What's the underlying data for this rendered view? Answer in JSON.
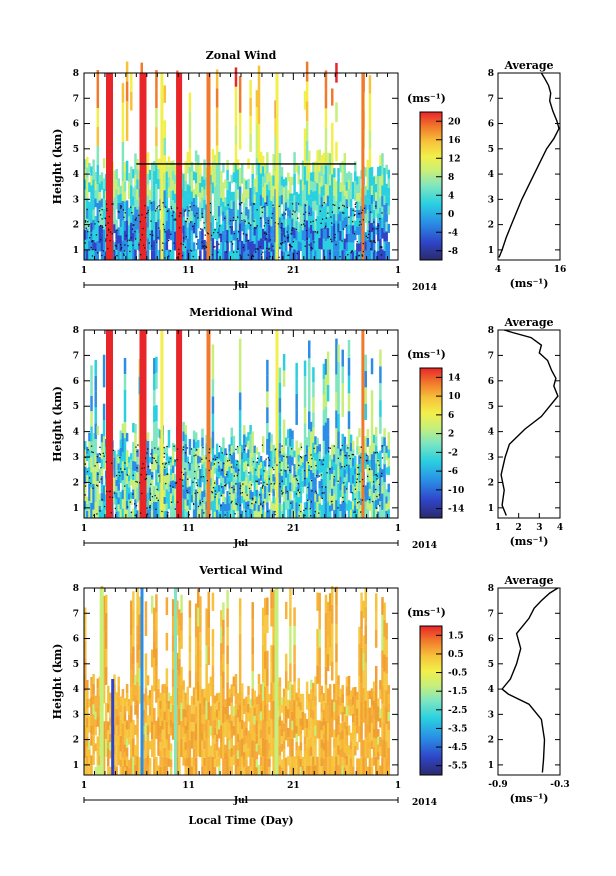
{
  "figure": {
    "xlabel": "Local Time (Day)",
    "month_label": "Jul",
    "year_label": "2014",
    "avg_title": "Average",
    "unit_label": "(ms⁻¹)"
  },
  "chart_data": [
    {
      "type": "heatmap",
      "title": "Zonal Wind",
      "ylabel": "Height (km)",
      "xlim": [
        1,
        31
      ],
      "ylim": [
        0.6,
        8
      ],
      "x_ticks": [
        "1",
        "11",
        "21",
        "1"
      ],
      "y_ticks": [
        "1",
        "2",
        "3",
        "4",
        "5",
        "6",
        "7",
        "8"
      ],
      "colorbar": {
        "label": "(ms⁻¹)",
        "ticks": [
          "20",
          "16",
          "12",
          "8",
          "4",
          "0",
          "-4",
          "-8"
        ],
        "min": -10,
        "max": 22
      },
      "data_gap_start_km": 4.4,
      "average_profile": {
        "title": "Average",
        "xlabel": "(ms⁻¹)",
        "xlim": [
          4,
          16
        ],
        "ylim": [
          0.6,
          8
        ],
        "x_ticks": [
          "4",
          "16"
        ],
        "y_ticks": [
          "1",
          "2",
          "3",
          "4",
          "5",
          "6",
          "7",
          "8"
        ],
        "x": [
          4.2,
          4.8,
          5.6,
          6.6,
          7.6,
          8.6,
          9.8,
          11.0,
          12.2,
          13.4,
          14.8,
          15.8,
          15.4,
          14.6,
          14.0,
          14.2,
          13.8,
          13.0,
          12.4
        ],
        "y": [
          0.7,
          1.0,
          1.5,
          2.0,
          2.5,
          3.0,
          3.5,
          4.0,
          4.5,
          5.0,
          5.4,
          5.8,
          6.1,
          6.5,
          6.9,
          7.2,
          7.5,
          7.8,
          8.0
        ]
      }
    },
    {
      "type": "heatmap",
      "title": "Meridional Wind",
      "ylabel": "Height (km)",
      "xlim": [
        1,
        31
      ],
      "ylim": [
        0.6,
        8
      ],
      "x_ticks": [
        "1",
        "11",
        "21",
        "1"
      ],
      "y_ticks": [
        "1",
        "2",
        "3",
        "4",
        "5",
        "6",
        "7",
        "8"
      ],
      "colorbar": {
        "label": "(ms⁻¹)",
        "ticks": [
          "14",
          "10",
          "6",
          "2",
          "-2",
          "-6",
          "-10",
          "-14"
        ],
        "min": -16,
        "max": 16
      },
      "average_profile": {
        "title": "Average",
        "xlabel": "(ms⁻¹)",
        "xlim": [
          1,
          4
        ],
        "ylim": [
          0.6,
          8
        ],
        "x_ticks": [
          "1",
          "2",
          "3",
          "4"
        ],
        "y_ticks": [
          "1",
          "2",
          "3",
          "4",
          "5",
          "6",
          "7",
          "8"
        ],
        "x": [
          1.4,
          1.2,
          1.3,
          1.15,
          1.35,
          1.55,
          2.3,
          3.1,
          3.5,
          3.9,
          3.7,
          3.8,
          3.6,
          3.4,
          3.0,
          3.1,
          2.6,
          1.7,
          1.3
        ],
        "y": [
          0.7,
          1.1,
          1.7,
          2.3,
          3.0,
          3.5,
          4.1,
          4.6,
          5.0,
          5.4,
          5.8,
          6.1,
          6.4,
          6.8,
          7.1,
          7.4,
          7.7,
          7.9,
          8.0
        ]
      }
    },
    {
      "type": "heatmap",
      "title": "Vertical Wind",
      "ylabel": "Height (km)",
      "xlim": [
        1,
        31
      ],
      "ylim": [
        0.6,
        8
      ],
      "x_ticks": [
        "1",
        "11",
        "21",
        "1"
      ],
      "y_ticks": [
        "1",
        "2",
        "3",
        "4",
        "5",
        "6",
        "7",
        "8"
      ],
      "colorbar": {
        "label": "(ms⁻¹)",
        "ticks": [
          "1.5",
          "0.5",
          "-0.5",
          "-1.5",
          "-2.5",
          "-3.5",
          "-4.5",
          "-5.5"
        ],
        "min": -6,
        "max": 2
      },
      "average_profile": {
        "title": "Average",
        "xlabel": "(ms⁻¹)",
        "xlim": [
          -0.9,
          -0.3
        ],
        "ylim": [
          0.6,
          8
        ],
        "x_ticks": [
          "-0.9",
          "-0.3"
        ],
        "y_ticks": [
          "1",
          "2",
          "3",
          "4",
          "5",
          "6",
          "7",
          "8"
        ],
        "x": [
          -0.47,
          -0.46,
          -0.45,
          -0.48,
          -0.6,
          -0.8,
          -0.86,
          -0.78,
          -0.72,
          -0.68,
          -0.72,
          -0.6,
          -0.55,
          -0.48,
          -0.4,
          -0.32
        ],
        "y": [
          0.7,
          1.2,
          2.0,
          2.8,
          3.4,
          3.8,
          4.0,
          4.4,
          5.0,
          5.6,
          6.2,
          6.8,
          7.2,
          7.5,
          7.8,
          8.0
        ]
      }
    }
  ]
}
